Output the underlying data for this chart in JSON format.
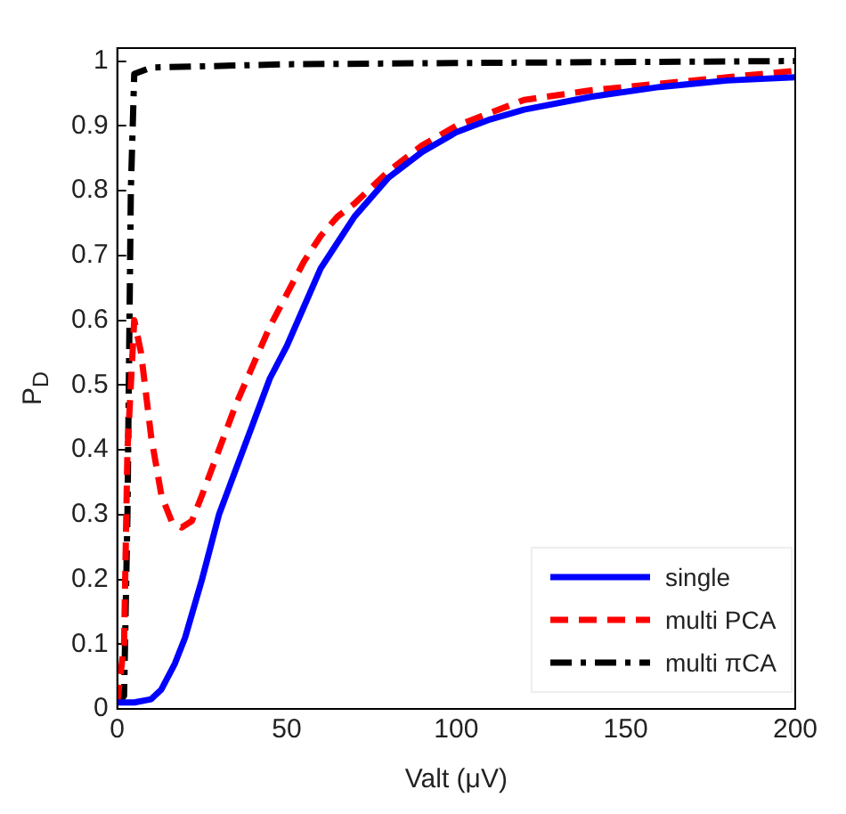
{
  "chart_data": {
    "type": "line",
    "xlabel": "Valt (μV)",
    "ylabel": "P$_{D}$",
    "xlim": [
      0,
      200
    ],
    "xticks": [
      0,
      50,
      100,
      150,
      200
    ],
    "ylim": [
      0,
      1.02
    ],
    "yticks": [
      0,
      0.1,
      0.2,
      0.3,
      0.4,
      0.5,
      0.6,
      0.7,
      0.8,
      0.9,
      1
    ],
    "grid": false,
    "legend": "bottom right",
    "series": [
      {
        "name": "single",
        "color": "#0000ff",
        "line_style": "solid",
        "x": [
          0,
          5,
          10,
          13,
          17,
          20,
          25,
          30,
          35,
          40,
          45,
          50,
          55,
          60,
          65,
          70,
          80,
          90,
          100,
          110,
          120,
          140,
          160,
          180,
          200
        ],
        "values": [
          0.01,
          0.01,
          0.015,
          0.03,
          0.07,
          0.11,
          0.2,
          0.3,
          0.37,
          0.44,
          0.51,
          0.56,
          0.62,
          0.68,
          0.72,
          0.76,
          0.82,
          0.86,
          0.89,
          0.91,
          0.925,
          0.945,
          0.96,
          0.97,
          0.975
        ]
      },
      {
        "name": "multi PCA",
        "color": "#ff0000",
        "line_style": "dashed",
        "x": [
          0,
          2,
          3,
          5,
          7,
          10,
          13,
          16,
          19,
          22,
          25,
          30,
          35,
          40,
          45,
          50,
          55,
          60,
          65,
          70,
          80,
          90,
          100,
          110,
          120,
          140,
          160,
          180,
          200
        ],
        "values": [
          0.01,
          0.1,
          0.4,
          0.6,
          0.55,
          0.42,
          0.33,
          0.29,
          0.28,
          0.29,
          0.33,
          0.4,
          0.47,
          0.53,
          0.59,
          0.64,
          0.69,
          0.73,
          0.76,
          0.78,
          0.83,
          0.87,
          0.9,
          0.92,
          0.94,
          0.955,
          0.965,
          0.975,
          0.985
        ]
      },
      {
        "name": "multi πCA",
        "color": "#000000",
        "line_style": "dashdot",
        "x": [
          0,
          2,
          3,
          4,
          5,
          10,
          50,
          100,
          200
        ],
        "values": [
          0.01,
          0.02,
          0.3,
          0.8,
          0.98,
          0.99,
          0.995,
          0.997,
          1.0
        ]
      }
    ]
  }
}
